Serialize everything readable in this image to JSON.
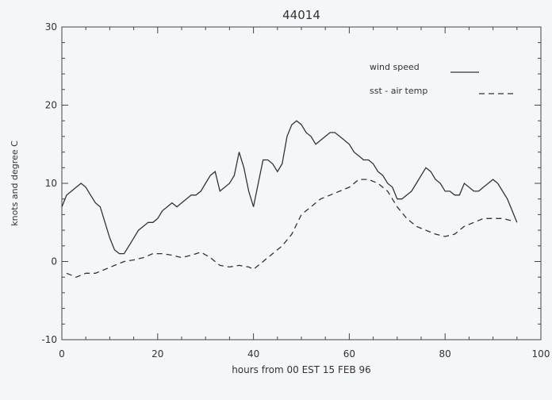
{
  "chart_data": {
    "type": "line",
    "title": "44014",
    "xlabel": "hours from 00 EST 15 FEB 96",
    "ylabel": "knots and degree C",
    "xlim": [
      0,
      100
    ],
    "ylim": [
      -10,
      30
    ],
    "x_ticks": [
      0,
      20,
      40,
      60,
      80,
      100
    ],
    "y_ticks": [
      -10,
      0,
      10,
      20,
      30
    ],
    "x_tick_labels": [
      "0",
      "20",
      "40",
      "60",
      "80",
      "100"
    ],
    "y_tick_labels": [
      "-10",
      "0",
      "10",
      "20",
      "30"
    ],
    "grid": false,
    "legend_position": "top-right",
    "series": [
      {
        "name": "wind speed",
        "line_style": "solid",
        "color": "#333333",
        "points": [
          [
            0,
            7
          ],
          [
            1,
            8.5
          ],
          [
            2,
            9
          ],
          [
            3,
            9.5
          ],
          [
            4,
            10
          ],
          [
            5,
            9.5
          ],
          [
            6,
            8.5
          ],
          [
            7,
            7.5
          ],
          [
            8,
            7
          ],
          [
            9,
            5
          ],
          [
            10,
            3
          ],
          [
            11,
            1.5
          ],
          [
            12,
            1
          ],
          [
            13,
            1
          ],
          [
            14,
            2
          ],
          [
            15,
            3
          ],
          [
            16,
            4
          ],
          [
            17,
            4.5
          ],
          [
            18,
            5
          ],
          [
            19,
            5
          ],
          [
            20,
            5.5
          ],
          [
            21,
            6.5
          ],
          [
            22,
            7
          ],
          [
            23,
            7.5
          ],
          [
            24,
            7
          ],
          [
            25,
            7.5
          ],
          [
            26,
            8
          ],
          [
            27,
            8.5
          ],
          [
            28,
            8.5
          ],
          [
            29,
            9
          ],
          [
            30,
            10
          ],
          [
            31,
            11
          ],
          [
            32,
            11.5
          ],
          [
            33,
            9
          ],
          [
            34,
            9.5
          ],
          [
            35,
            10
          ],
          [
            36,
            11
          ],
          [
            37,
            14
          ],
          [
            38,
            12
          ],
          [
            39,
            9
          ],
          [
            40,
            7
          ],
          [
            41,
            10
          ],
          [
            42,
            13
          ],
          [
            43,
            13
          ],
          [
            44,
            12.5
          ],
          [
            45,
            11.5
          ],
          [
            46,
            12.5
          ],
          [
            47,
            16
          ],
          [
            48,
            17.5
          ],
          [
            49,
            18
          ],
          [
            50,
            17.5
          ],
          [
            51,
            16.5
          ],
          [
            52,
            16
          ],
          [
            53,
            15
          ],
          [
            54,
            15.5
          ],
          [
            55,
            16
          ],
          [
            56,
            16.5
          ],
          [
            57,
            16.5
          ],
          [
            58,
            16
          ],
          [
            59,
            15.5
          ],
          [
            60,
            15
          ],
          [
            61,
            14
          ],
          [
            62,
            13.5
          ],
          [
            63,
            13
          ],
          [
            64,
            13
          ],
          [
            65,
            12.5
          ],
          [
            66,
            11.5
          ],
          [
            67,
            11
          ],
          [
            68,
            10
          ],
          [
            69,
            9.5
          ],
          [
            70,
            8
          ],
          [
            71,
            8
          ],
          [
            72,
            8.5
          ],
          [
            73,
            9
          ],
          [
            74,
            10
          ],
          [
            75,
            11
          ],
          [
            76,
            12
          ],
          [
            77,
            11.5
          ],
          [
            78,
            10.5
          ],
          [
            79,
            10
          ],
          [
            80,
            9
          ],
          [
            81,
            9
          ],
          [
            82,
            8.5
          ],
          [
            83,
            8.5
          ],
          [
            84,
            10
          ],
          [
            85,
            9.5
          ],
          [
            86,
            9
          ],
          [
            87,
            9
          ],
          [
            88,
            9.5
          ],
          [
            89,
            10
          ],
          [
            90,
            10.5
          ],
          [
            91,
            10
          ],
          [
            92,
            9
          ],
          [
            93,
            8
          ],
          [
            94,
            6.5
          ],
          [
            95,
            5
          ]
        ]
      },
      {
        "name": "sst - air temp",
        "line_style": "dashed",
        "color": "#333333",
        "points": [
          [
            1,
            -1.5
          ],
          [
            3,
            -2
          ],
          [
            5,
            -1.5
          ],
          [
            7,
            -1.5
          ],
          [
            9,
            -1
          ],
          [
            11,
            -0.5
          ],
          [
            13,
            0
          ],
          [
            15,
            0.2
          ],
          [
            17,
            0.5
          ],
          [
            19,
            1
          ],
          [
            21,
            1
          ],
          [
            23,
            0.8
          ],
          [
            25,
            0.5
          ],
          [
            27,
            0.8
          ],
          [
            29,
            1.2
          ],
          [
            31,
            0.5
          ],
          [
            33,
            -0.5
          ],
          [
            35,
            -0.7
          ],
          [
            37,
            -0.5
          ],
          [
            39,
            -0.7
          ],
          [
            40,
            -1
          ],
          [
            42,
            0
          ],
          [
            44,
            1
          ],
          [
            46,
            2
          ],
          [
            48,
            3.5
          ],
          [
            50,
            6
          ],
          [
            52,
            7
          ],
          [
            54,
            8
          ],
          [
            56,
            8.5
          ],
          [
            58,
            9
          ],
          [
            60,
            9.5
          ],
          [
            62,
            10.5
          ],
          [
            64,
            10.5
          ],
          [
            66,
            10
          ],
          [
            68,
            9
          ],
          [
            70,
            7
          ],
          [
            72,
            5.5
          ],
          [
            74,
            4.5
          ],
          [
            76,
            4
          ],
          [
            78,
            3.5
          ],
          [
            80,
            3.2
          ],
          [
            82,
            3.5
          ],
          [
            84,
            4.5
          ],
          [
            86,
            5
          ],
          [
            88,
            5.5
          ],
          [
            90,
            5.5
          ],
          [
            92,
            5.5
          ],
          [
            94,
            5.2
          ]
        ]
      }
    ]
  }
}
